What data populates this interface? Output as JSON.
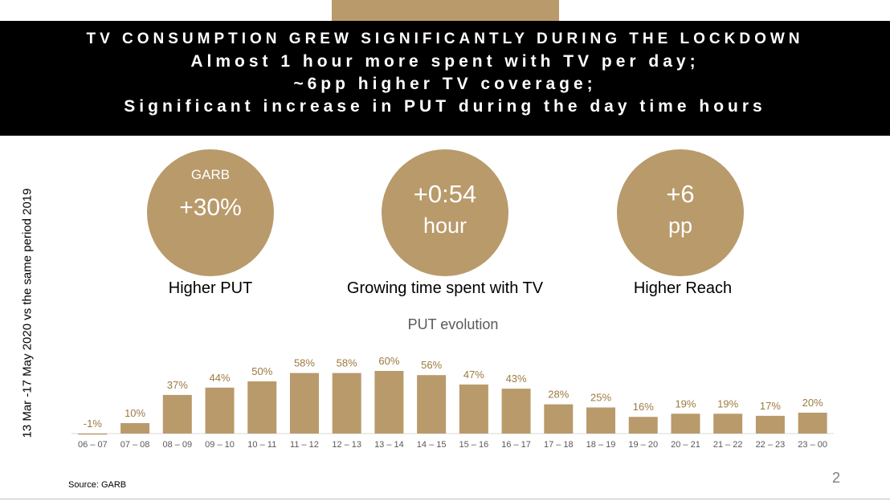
{
  "header": {
    "line1": "TV CONSUMPTION GREW SIGNIFICANTLY DURING THE LOCKDOWN",
    "line2": "Almost 1 hour more spent with TV per day;",
    "line3": "~6pp higher TV coverage;",
    "line4": "Significant increase in PUT during the day time hours"
  },
  "side_label": "13 Mar -17 May 2020 vs the same period 2019",
  "kpis": [
    {
      "top": "GARB",
      "main": "+30%",
      "label": "Higher PUT"
    },
    {
      "main": "+0:54",
      "sub": "hour",
      "label": "Growing time spent with TV"
    },
    {
      "main": "+6",
      "sub": "pp",
      "label": "Higher Reach"
    }
  ],
  "colors": {
    "accent": "#b99a6b",
    "header_bg": "#000000",
    "bar": "#b99a6b",
    "bar_label": "#9c7a40"
  },
  "chart_data": {
    "type": "bar",
    "title": "PUT evolution",
    "categories": [
      "06 – 07",
      "07 – 08",
      "08 – 09",
      "09 – 10",
      "10 – 11",
      "11 – 12",
      "12 – 13",
      "13 – 14",
      "14 – 15",
      "15 – 16",
      "16 – 17",
      "17 – 18",
      "18 – 19",
      "19 – 20",
      "20 – 21",
      "21 – 22",
      "22 – 23",
      "23 – 00"
    ],
    "values": [
      -1,
      10,
      37,
      44,
      50,
      58,
      58,
      60,
      56,
      47,
      43,
      28,
      25,
      16,
      19,
      19,
      17,
      20
    ],
    "value_labels": [
      "-1%",
      "10%",
      "37%",
      "44%",
      "50%",
      "58%",
      "58%",
      "60%",
      "56%",
      "47%",
      "43%",
      "28%",
      "25%",
      "16%",
      "19%",
      "19%",
      "17%",
      "20%"
    ],
    "ylim": [
      -1,
      60
    ],
    "grid": false,
    "legend": "none"
  },
  "source": "Source: GARB",
  "page_number": "2"
}
